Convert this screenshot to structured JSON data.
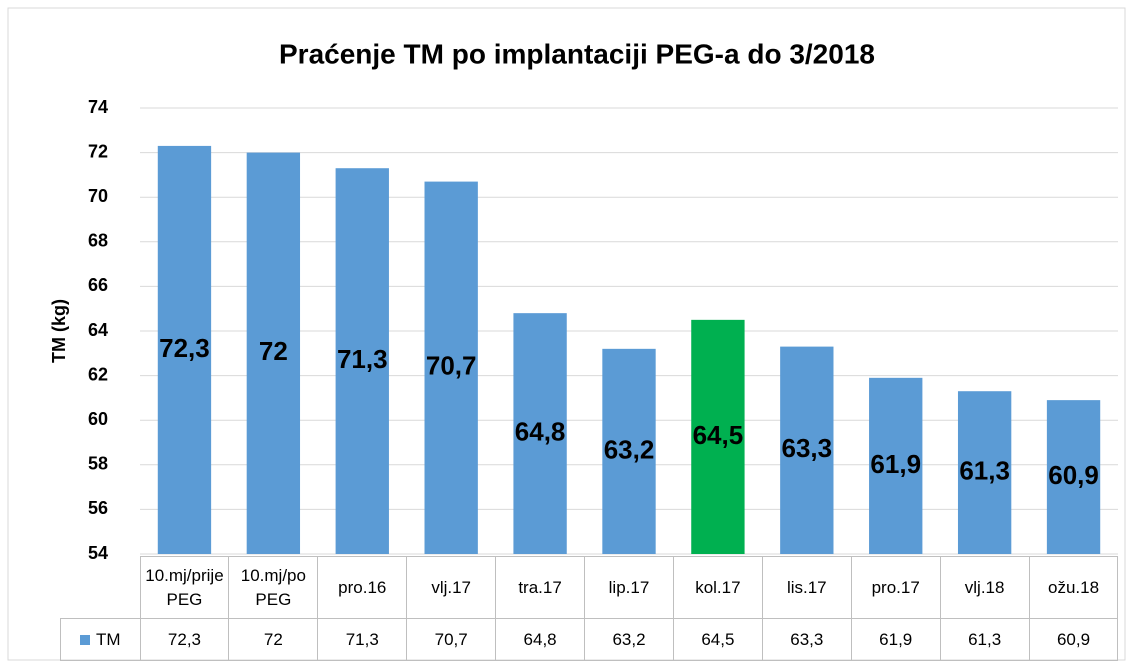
{
  "chart_data": {
    "type": "bar",
    "title": "Praćenje TM po implantaciji PEG-a do 3/2018",
    "y_label": "TM (kg)",
    "categories": [
      "10.mj/prije PEG",
      "10.mj/po PEG",
      "pro.16",
      "vlj.17",
      "tra.17",
      "lip.17",
      "kol.17",
      "lis.17",
      "pro.17",
      "vlj.18",
      "ožu.18"
    ],
    "series": [
      {
        "name": "TM",
        "color": "#5b9bd5",
        "values": [
          72.3,
          72,
          71.3,
          70.7,
          64.8,
          63.2,
          64.5,
          63.3,
          61.9,
          61.3,
          60.9
        ],
        "value_labels": [
          "72,3",
          "72",
          "71,3",
          "70,7",
          "64,8",
          "63,2",
          "64,5",
          "63,3",
          "61,9",
          "61,3",
          "60,9"
        ],
        "point_colors": [
          "#5b9bd5",
          "#5b9bd5",
          "#5b9bd5",
          "#5b9bd5",
          "#5b9bd5",
          "#5b9bd5",
          "#00b050",
          "#5b9bd5",
          "#5b9bd5",
          "#5b9bd5",
          "#5b9bd5"
        ]
      }
    ],
    "ylim": [
      54,
      74
    ],
    "yticks": [
      54,
      56,
      58,
      60,
      62,
      64,
      66,
      68,
      70,
      72,
      74
    ],
    "grid": true,
    "data_table": true
  }
}
